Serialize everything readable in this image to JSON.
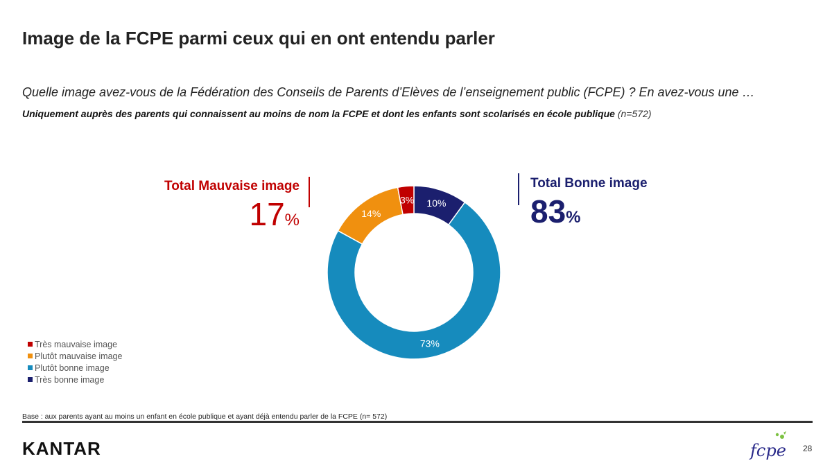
{
  "header": {
    "title": "Image de la FCPE parmi ceux qui en ont entendu parler",
    "question": "Quelle image avez-vous de la Fédération des Conseils de Parents d’Elèves de l’enseignement public (FCPE) ? En avez-vous une …",
    "subtitle_bold": "Uniquement auprès des parents qui connaissent au moins de nom la FCPE et dont les enfants sont scolarisés en école publique",
    "subtitle_n": "(n=572)"
  },
  "totals": {
    "bad_label": "Total Mauvaise image",
    "bad_value": "17",
    "good_label": "Total Bonne image",
    "good_value": "83",
    "unit": "%"
  },
  "colors": {
    "tres_mauvaise": "#c00000",
    "plutot_mauvaise": "#f0900f",
    "plutot_bonne": "#168bbd",
    "tres_bonne": "#1b1f6e"
  },
  "chart_data": {
    "type": "pie",
    "variant": "donut",
    "categories": [
      "Très mauvaise image",
      "Plutôt mauvaise image",
      "Plutôt bonne image",
      "Très bonne image"
    ],
    "values": [
      3,
      14,
      73,
      10
    ],
    "data_labels": [
      "3%",
      "14%",
      "73%",
      "10%"
    ],
    "legend_position": "bottom-left"
  },
  "footer": {
    "base_note": "Base : aux parents ayant au moins un enfant en école publique et ayant déjà entendu parler de la FCPE (n= 572)",
    "brand": "KANTAR",
    "partner_logo_text": "fcpe",
    "page_number": "28"
  }
}
